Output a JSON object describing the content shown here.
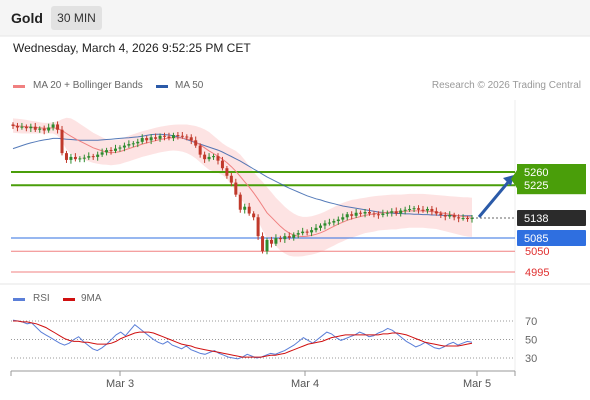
{
  "header": {
    "symbol": "Gold",
    "timeframe": "30 MIN",
    "datetime": "Wednesday, March 4, 2026 9:52:25 PM CET",
    "credit": "Research © 2026 Trading Central"
  },
  "legend": {
    "price": [
      {
        "name": "MA 20 + Bollinger Bands",
        "color": "#f08080"
      },
      {
        "name": "MA 50",
        "color": "#2b5aa8"
      }
    ],
    "indicator": [
      {
        "name": "RSI",
        "color": "#5b7fd8"
      },
      {
        "name": "9MA",
        "color": "#d01010"
      }
    ]
  },
  "colors": {
    "bull": "#2e8b2e",
    "bear": "#c0392b",
    "resistance": "#4a9e0a",
    "support": "#2f6fe0",
    "lower_support": "#f08080",
    "current": "#2b2b2b",
    "arrow": "#2b5aa8",
    "band_fill": "#fde0e0"
  },
  "chart_data": [
    {
      "type": "candlestick",
      "title": "",
      "x_ticks": [
        "Mar 3",
        "Mar 4",
        "Mar 5"
      ],
      "levels": [
        {
          "label": "5260",
          "value": 5260,
          "kind": "resistance"
        },
        {
          "label": "5225",
          "value": 5225,
          "kind": "resistance"
        },
        {
          "label": "5138",
          "value": 5138,
          "kind": "current"
        },
        {
          "label": "5085",
          "value": 5085,
          "kind": "support"
        },
        {
          "label": "5050",
          "value": 5050,
          "kind": "lower_support"
        },
        {
          "label": "4995",
          "value": 4995,
          "kind": "lower_support"
        }
      ],
      "close": [
        5382,
        5378,
        5380,
        5376,
        5380,
        5372,
        5375,
        5370,
        5378,
        5386,
        5372,
        5310,
        5292,
        5300,
        5294,
        5296,
        5298,
        5302,
        5300,
        5306,
        5312,
        5318,
        5316,
        5322,
        5325,
        5330,
        5334,
        5336,
        5340,
        5350,
        5344,
        5352,
        5348,
        5356,
        5354,
        5350,
        5358,
        5356,
        5354,
        5352,
        5344,
        5330,
        5306,
        5294,
        5300,
        5302,
        5290,
        5270,
        5250,
        5232,
        5200,
        5160,
        5168,
        5150,
        5140,
        5090,
        5050,
        5080,
        5070,
        5085,
        5082,
        5090,
        5086,
        5094,
        5098,
        5102,
        5100,
        5106,
        5112,
        5118,
        5124,
        5126,
        5130,
        5134,
        5140,
        5148,
        5144,
        5152,
        5150,
        5154,
        5150,
        5148,
        5146,
        5150,
        5152,
        5156,
        5150,
        5158,
        5160,
        5162,
        5164,
        5160,
        5158,
        5162,
        5156,
        5150,
        5146,
        5142,
        5146,
        5140,
        5137,
        5138,
        5136,
        5138
      ],
      "ma20": [
        5383,
        5382,
        5381,
        5380,
        5379,
        5378,
        5377,
        5376,
        5376,
        5377,
        5375,
        5370,
        5362,
        5355,
        5348,
        5342,
        5336,
        5330,
        5324,
        5320,
        5316,
        5313,
        5311,
        5312,
        5314,
        5318,
        5322,
        5326,
        5330,
        5334,
        5337,
        5340,
        5343,
        5346,
        5348,
        5350,
        5351,
        5351,
        5350,
        5348,
        5344,
        5339,
        5332,
        5324,
        5316,
        5309,
        5302,
        5294,
        5285,
        5274,
        5262,
        5248,
        5234,
        5220,
        5205,
        5188,
        5170,
        5152,
        5140,
        5128,
        5116,
        5106,
        5098,
        5093,
        5090,
        5089,
        5090,
        5092,
        5095,
        5099,
        5104,
        5110,
        5116,
        5122,
        5127,
        5132,
        5136,
        5139,
        5142,
        5145,
        5147,
        5149,
        5151,
        5152,
        5153,
        5154,
        5154,
        5155,
        5156,
        5157,
        5157,
        5157,
        5157,
        5156,
        5155,
        5154,
        5152,
        5150,
        5148,
        5146,
        5144,
        5142,
        5141,
        5140
      ],
      "bb_upper": [
        5402,
        5401,
        5400,
        5398,
        5396,
        5394,
        5392,
        5390,
        5390,
        5392,
        5394,
        5400,
        5404,
        5402,
        5396,
        5388,
        5380,
        5372,
        5364,
        5358,
        5352,
        5347,
        5344,
        5345,
        5347,
        5351,
        5356,
        5360,
        5364,
        5368,
        5371,
        5374,
        5377,
        5380,
        5382,
        5384,
        5385,
        5386,
        5386,
        5386,
        5384,
        5382,
        5378,
        5373,
        5366,
        5356,
        5346,
        5336,
        5328,
        5322,
        5316,
        5306,
        5292,
        5276,
        5260,
        5246,
        5234,
        5220,
        5206,
        5192,
        5180,
        5168,
        5158,
        5150,
        5144,
        5141,
        5141,
        5143,
        5146,
        5150,
        5155,
        5161,
        5167,
        5173,
        5178,
        5182,
        5186,
        5188,
        5190,
        5192,
        5194,
        5196,
        5197,
        5198,
        5199,
        5200,
        5200,
        5200,
        5201,
        5202,
        5202,
        5202,
        5202,
        5201,
        5200,
        5199,
        5198,
        5197,
        5196,
        5195,
        5194,
        5193,
        5193,
        5192
      ],
      "bb_lower": [
        5364,
        5363,
        5362,
        5362,
        5362,
        5362,
        5362,
        5362,
        5362,
        5362,
        5356,
        5340,
        5320,
        5308,
        5300,
        5296,
        5292,
        5288,
        5284,
        5282,
        5280,
        5279,
        5278,
        5279,
        5281,
        5285,
        5288,
        5292,
        5296,
        5300,
        5303,
        5306,
        5309,
        5312,
        5314,
        5316,
        5317,
        5316,
        5314,
        5310,
        5304,
        5296,
        5286,
        5275,
        5266,
        5262,
        5258,
        5252,
        5242,
        5226,
        5208,
        5190,
        5176,
        5164,
        5150,
        5130,
        5106,
        5084,
        5074,
        5064,
        5052,
        5044,
        5038,
        5036,
        5036,
        5037,
        5039,
        5041,
        5044,
        5048,
        5053,
        5059,
        5065,
        5071,
        5076,
        5082,
        5086,
        5090,
        5094,
        5098,
        5100,
        5102,
        5105,
        5106,
        5107,
        5108,
        5108,
        5110,
        5111,
        5112,
        5112,
        5112,
        5112,
        5111,
        5110,
        5109,
        5106,
        5103,
        5100,
        5097,
        5094,
        5091,
        5089,
        5088
      ],
      "ma50": [
        5322,
        5326,
        5330,
        5334,
        5337,
        5340,
        5343,
        5345,
        5347,
        5349,
        5349,
        5348,
        5347,
        5346,
        5345,
        5344,
        5344,
        5344,
        5344,
        5344,
        5345,
        5346,
        5347,
        5348,
        5349,
        5350,
        5351,
        5352,
        5353,
        5355,
        5357,
        5359,
        5360,
        5360,
        5359,
        5358,
        5356,
        5353,
        5350,
        5346,
        5342,
        5338,
        5334,
        5330,
        5326,
        5322,
        5318,
        5313,
        5307,
        5301,
        5295,
        5289,
        5282,
        5275,
        5268,
        5261,
        5254,
        5247,
        5241,
        5235,
        5229,
        5223,
        5217,
        5212,
        5207,
        5202,
        5197,
        5193,
        5189,
        5186,
        5182,
        5179,
        5176,
        5173,
        5170,
        5168,
        5166,
        5164,
        5162,
        5160,
        5158,
        5156,
        5154,
        5153,
        5152,
        5151,
        5150,
        5150,
        5149,
        5149,
        5148,
        5148,
        5147,
        5147,
        5146,
        5146,
        5145,
        5145,
        5145,
        5144,
        5144,
        5144,
        5144,
        5144
      ]
    },
    {
      "type": "line",
      "title": "RSI",
      "y_ticks": [
        70,
        50,
        30
      ],
      "ylim": [
        20,
        80
      ],
      "series": [
        {
          "name": "RSI",
          "values": [
            71,
            70,
            69,
            67,
            68,
            63,
            58,
            55,
            52,
            49,
            46,
            44,
            46,
            50,
            53,
            48,
            44,
            40,
            38,
            41,
            45,
            50,
            55,
            58,
            54,
            60,
            66,
            62,
            58,
            54,
            50,
            47,
            45,
            48,
            44,
            42,
            40,
            43,
            39,
            37,
            35,
            34,
            36,
            38,
            35,
            33,
            31,
            30,
            29,
            31,
            34,
            32,
            30,
            31,
            33,
            35,
            34,
            36,
            38,
            41,
            44,
            48,
            52,
            49,
            46,
            50,
            54,
            58,
            56,
            52,
            49,
            51,
            53,
            55,
            58,
            56,
            53,
            54,
            57,
            59,
            62,
            60,
            56,
            52,
            48,
            45,
            42,
            44,
            47,
            44,
            41,
            40,
            42,
            45,
            47,
            44,
            46,
            48,
            47
          ]
        },
        {
          "name": "9MA",
          "values": [
            70,
            70,
            69,
            69,
            68,
            67,
            65,
            63,
            60,
            57,
            54,
            51,
            49,
            48,
            48,
            47,
            47,
            46,
            45,
            45,
            45,
            46,
            48,
            51,
            53,
            55,
            57,
            58,
            58,
            58,
            57,
            55,
            53,
            51,
            49,
            47,
            45,
            44,
            43,
            41,
            40,
            39,
            38,
            37,
            36,
            35,
            34,
            33,
            32,
            31,
            31,
            31,
            31,
            31,
            32,
            33,
            33,
            34,
            35,
            37,
            39,
            41,
            43,
            45,
            46,
            47,
            48,
            50,
            52,
            53,
            54,
            55,
            55,
            55,
            55,
            55,
            55,
            55,
            55,
            56,
            56,
            57,
            57,
            56,
            55,
            53,
            51,
            49,
            47,
            46,
            45,
            44,
            43,
            43,
            43,
            43,
            44,
            45,
            46
          ]
        }
      ]
    }
  ]
}
